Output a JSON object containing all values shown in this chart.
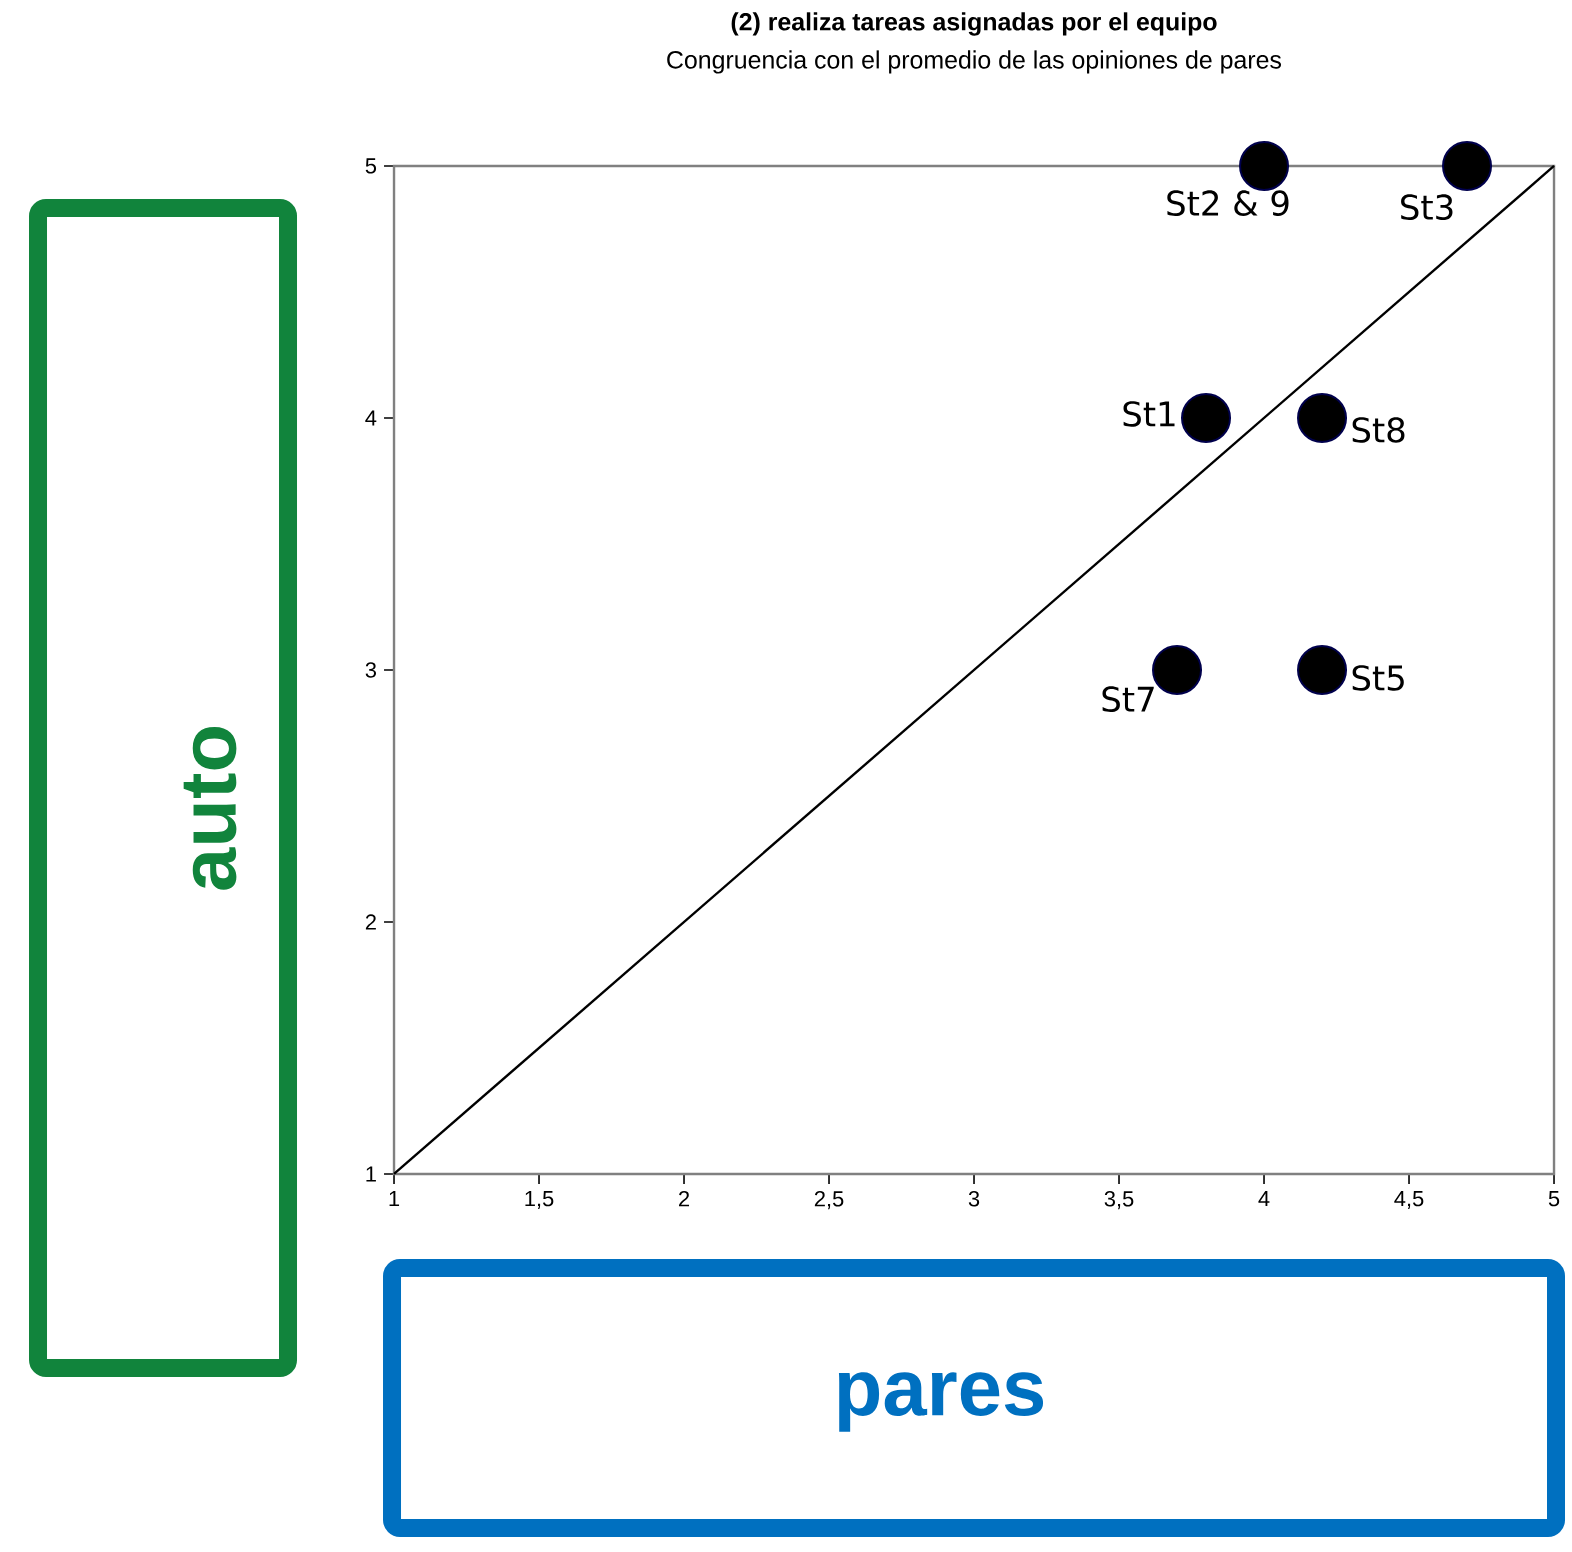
{
  "chart_data": {
    "type": "scatter",
    "title": "(2) realiza tareas asignadas por el equipo",
    "subtitle": "Congruencia con el promedio de las opiniones de pares",
    "xlabel": "pares",
    "ylabel": "auto",
    "xlim": [
      1,
      5
    ],
    "ylim": [
      1,
      5
    ],
    "xticks": [
      1,
      {
        "value": 1.5,
        "label": "1,5"
      },
      2,
      {
        "value": 2.5,
        "label": "2,5"
      },
      3,
      {
        "value": 3.5,
        "label": "3,5"
      },
      4,
      {
        "value": 4.5,
        "label": "4,5"
      },
      5
    ],
    "yticks": [
      1,
      2,
      3,
      4,
      5
    ],
    "series": [
      {
        "color": "#000000",
        "marker": "circle",
        "x": [
          3.8,
          4,
          4.7,
          4.2,
          4.2,
          3.7
        ],
        "values": [
          4,
          5,
          5,
          4,
          3,
          3
        ]
      },
      {
        "type": "line",
        "color": "#000000",
        "x": [
          1,
          5
        ],
        "values": [
          1,
          5
        ]
      }
    ],
    "annotations": [
      {
        "text": "St1",
        "x": 3.8,
        "y": 4
      },
      {
        "text": "St2 & 9",
        "x": 4,
        "y": 5
      },
      {
        "text": "St3",
        "x": 4.7,
        "y": 5
      },
      {
        "text": "St8",
        "x": 4.2,
        "y": 4
      },
      {
        "text": "St5",
        "x": 4.2,
        "y": 3
      },
      {
        "text": "St7",
        "x": 3.7,
        "y": 3
      }
    ]
  }
}
